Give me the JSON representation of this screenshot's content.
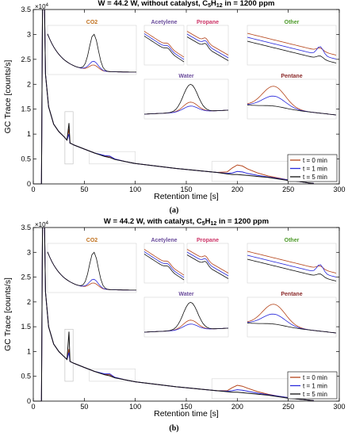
{
  "chart_data": [
    {
      "type": "line",
      "panel_label": "(a)",
      "title_prefix": "W = 44.2 W, without catalyst, C",
      "title_sub": "5",
      "title_mid": "H",
      "title_sub2": "12",
      "title_suffix": " in = 1200 ppm",
      "xlabel": "Retention time [s]",
      "ylabel": "GC Trace [counts/s]",
      "y_multiplier": "×10",
      "y_multiplier_exp": "4",
      "xlim": [
        0,
        300
      ],
      "ylim": [
        0,
        3.5
      ],
      "xticks": [
        "0",
        "50",
        "100",
        "150",
        "200",
        "250",
        "300"
      ],
      "yticks": [
        "0",
        "0.5",
        "1",
        "1.5",
        "2",
        "2.5",
        "3",
        "3.5"
      ],
      "legend_position": "bottom-right",
      "grid": false,
      "series": [
        {
          "name": "t = 0 min",
          "color": "#b5451b",
          "x": [
            0,
            8,
            9,
            9.5,
            10,
            11,
            12,
            15,
            20,
            25,
            30,
            33,
            35,
            36,
            38,
            40,
            50,
            60,
            70,
            75,
            80,
            90,
            100,
            120,
            140,
            160,
            180,
            190,
            195,
            200,
            205,
            210,
            220,
            230,
            240,
            250,
            260,
            270,
            275
          ],
          "y": [
            0,
            0,
            3.5,
            3.5,
            3.5,
            3.5,
            2.2,
            1.55,
            1.2,
            1.05,
            0.95,
            0.88,
            1.1,
            0.82,
            0.8,
            0.78,
            0.7,
            0.62,
            0.56,
            0.55,
            0.5,
            0.45,
            0.41,
            0.36,
            0.31,
            0.27,
            0.23,
            0.24,
            0.32,
            0.38,
            0.36,
            0.3,
            0.22,
            0.16,
            0.12,
            0.08,
            0.05,
            0.02,
            0.01
          ]
        },
        {
          "name": "t = 1 min",
          "color": "#2a2adb",
          "x": [
            0,
            8,
            9,
            9.5,
            10,
            11,
            12,
            15,
            20,
            25,
            30,
            33,
            35,
            36,
            38,
            40,
            50,
            60,
            70,
            75,
            80,
            90,
            100,
            120,
            140,
            160,
            180,
            190,
            195,
            200,
            205,
            210,
            220,
            230,
            240,
            250,
            260,
            270,
            275
          ],
          "y": [
            0,
            0,
            3.5,
            3.5,
            3.5,
            3.5,
            2.2,
            1.55,
            1.2,
            1.05,
            0.95,
            0.88,
            1.0,
            0.82,
            0.8,
            0.78,
            0.7,
            0.62,
            0.57,
            0.56,
            0.5,
            0.45,
            0.41,
            0.36,
            0.31,
            0.27,
            0.23,
            0.21,
            0.22,
            0.25,
            0.24,
            0.21,
            0.17,
            0.14,
            0.11,
            0.08,
            0.05,
            0.02,
            0.01
          ]
        },
        {
          "name": "t = 5 min",
          "color": "#111111",
          "x": [
            0,
            8,
            9,
            9.5,
            10,
            11,
            12,
            15,
            20,
            25,
            30,
            33,
            35,
            36,
            38,
            40,
            50,
            60,
            70,
            75,
            80,
            90,
            100,
            120,
            140,
            160,
            180,
            190,
            195,
            200,
            205,
            210,
            220,
            230,
            240,
            250,
            260,
            270,
            275
          ],
          "y": [
            0,
            0,
            3.5,
            3.5,
            3.5,
            3.5,
            2.2,
            1.55,
            1.2,
            1.05,
            0.95,
            0.88,
            1.22,
            0.82,
            0.8,
            0.78,
            0.7,
            0.62,
            0.55,
            0.53,
            0.49,
            0.45,
            0.41,
            0.36,
            0.31,
            0.27,
            0.23,
            0.2,
            0.19,
            0.19,
            0.18,
            0.17,
            0.15,
            0.13,
            0.1,
            0.07,
            0.05,
            0.02,
            0.01
          ]
        }
      ],
      "insets": [
        {
          "label": "CO2",
          "color": "#c0701d"
        },
        {
          "label": "Acetylene",
          "color": "#6a4c9c"
        },
        {
          "label": "Propane",
          "color": "#cc3366"
        },
        {
          "label": "Other",
          "color": "#4d9a2a"
        },
        {
          "label": "Water",
          "color": "#6a4c9c"
        },
        {
          "label": "Pentane",
          "color": "#8b2a2a"
        }
      ]
    },
    {
      "type": "line",
      "panel_label": "(b)",
      "title_prefix": "W = 44.2 W, with catalyst, C",
      "title_sub": "5",
      "title_mid": "H",
      "title_sub2": "12",
      "title_suffix": " in = 1200 ppm",
      "xlabel": "Retention time [s]",
      "ylabel": "GC Trace [counts/s]",
      "y_multiplier": "×10",
      "y_multiplier_exp": "4",
      "xlim": [
        0,
        300
      ],
      "ylim": [
        0,
        3.5
      ],
      "xticks": [
        "0",
        "50",
        "100",
        "150",
        "200",
        "250",
        "300"
      ],
      "yticks": [
        "0",
        "0.5",
        "1",
        "1.5",
        "2",
        "2.5",
        "3",
        "3.5"
      ],
      "legend_position": "bottom-right",
      "grid": false,
      "series": [
        {
          "name": "t = 0 min",
          "color": "#b5451b",
          "x": [
            0,
            8,
            9,
            9.5,
            10,
            11,
            12,
            15,
            20,
            25,
            30,
            33,
            35,
            36,
            38,
            40,
            50,
            60,
            70,
            75,
            80,
            90,
            100,
            120,
            140,
            160,
            180,
            190,
            195,
            200,
            205,
            210,
            220,
            230,
            240,
            250,
            260,
            270,
            275
          ],
          "y": [
            0,
            0,
            3.5,
            3.5,
            3.5,
            3.5,
            2.2,
            1.5,
            1.15,
            1.0,
            0.9,
            0.84,
            1.05,
            0.8,
            0.78,
            0.76,
            0.68,
            0.6,
            0.54,
            0.53,
            0.48,
            0.43,
            0.39,
            0.34,
            0.29,
            0.25,
            0.21,
            0.21,
            0.27,
            0.32,
            0.3,
            0.26,
            0.19,
            0.14,
            0.1,
            0.07,
            0.04,
            0.02,
            0.01
          ]
        },
        {
          "name": "t = 1 min",
          "color": "#2a2adb",
          "x": [
            0,
            8,
            9,
            9.5,
            10,
            11,
            12,
            15,
            20,
            25,
            30,
            33,
            35,
            36,
            38,
            40,
            50,
            60,
            70,
            75,
            80,
            90,
            100,
            120,
            140,
            160,
            180,
            190,
            195,
            200,
            205,
            210,
            220,
            230,
            240,
            250,
            260,
            270,
            275
          ],
          "y": [
            0,
            0,
            3.5,
            3.5,
            3.5,
            3.5,
            2.2,
            1.5,
            1.15,
            1.0,
            0.9,
            0.84,
            0.98,
            0.8,
            0.78,
            0.76,
            0.68,
            0.6,
            0.55,
            0.55,
            0.48,
            0.43,
            0.39,
            0.34,
            0.29,
            0.25,
            0.21,
            0.2,
            0.21,
            0.23,
            0.22,
            0.2,
            0.16,
            0.13,
            0.1,
            0.07,
            0.04,
            0.02,
            0.01
          ]
        },
        {
          "name": "t = 5 min",
          "color": "#111111",
          "x": [
            0,
            8,
            9,
            9.5,
            10,
            11,
            12,
            15,
            20,
            25,
            30,
            33,
            35,
            36,
            38,
            40,
            50,
            60,
            70,
            75,
            80,
            90,
            100,
            120,
            140,
            160,
            180,
            190,
            195,
            200,
            205,
            210,
            220,
            230,
            240,
            250,
            260,
            270,
            275
          ],
          "y": [
            0,
            0,
            3.5,
            3.5,
            3.5,
            3.5,
            2.2,
            1.5,
            1.15,
            1.0,
            0.9,
            0.84,
            1.4,
            0.8,
            0.78,
            0.76,
            0.68,
            0.6,
            0.53,
            0.51,
            0.47,
            0.43,
            0.39,
            0.34,
            0.29,
            0.25,
            0.21,
            0.19,
            0.18,
            0.18,
            0.17,
            0.16,
            0.14,
            0.12,
            0.09,
            0.06,
            0.04,
            0.02,
            0.01
          ]
        }
      ],
      "insets": [
        {
          "label": "CO2",
          "color": "#c0701d"
        },
        {
          "label": "Acetylene",
          "color": "#6a4c9c"
        },
        {
          "label": "Propane",
          "color": "#cc3366"
        },
        {
          "label": "Other",
          "color": "#4d9a2a"
        },
        {
          "label": "Water",
          "color": "#6a4c9c"
        },
        {
          "label": "Pentane",
          "color": "#8b2a2a"
        }
      ]
    }
  ]
}
